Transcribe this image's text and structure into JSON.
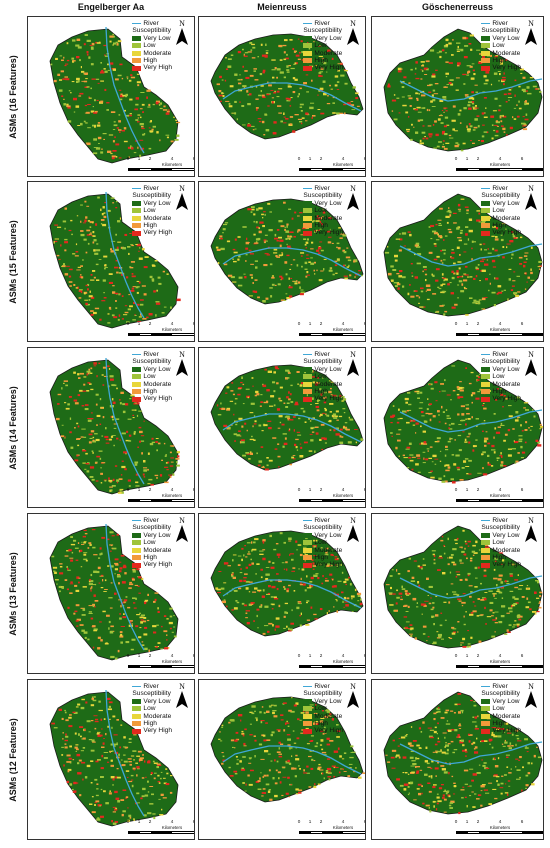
{
  "columns": [
    "Engelberger Aa",
    "Meienreuss",
    "Göschenerreuss"
  ],
  "rows": [
    "ASMs (16 Features)",
    "ASMs (15 Features)",
    "ASMs (14 Features)",
    "ASMs (13 Features)",
    "ASMs (12 Features)"
  ],
  "legend": {
    "river_label": "River",
    "title": "Susceptibility",
    "classes": [
      {
        "label": "Very Low",
        "color": "#1e6b17"
      },
      {
        "label": "Low",
        "color": "#9fc43a"
      },
      {
        "label": "Moderate",
        "color": "#e8d63b"
      },
      {
        "label": "High",
        "color": "#f29a3a"
      },
      {
        "label": "Very High",
        "color": "#e3291e"
      }
    ]
  },
  "north_label": "N",
  "scale_bar": {
    "units": "Kilometers",
    "ticks": [
      "0",
      "1",
      "2",
      "4",
      "6",
      "8"
    ],
    "tick_values": [
      0,
      1,
      2,
      4,
      6,
      8
    ]
  },
  "colors": {
    "river": "#3fa7d6",
    "outline": "#1a1a1a",
    "basin": "#1e6b17"
  }
}
